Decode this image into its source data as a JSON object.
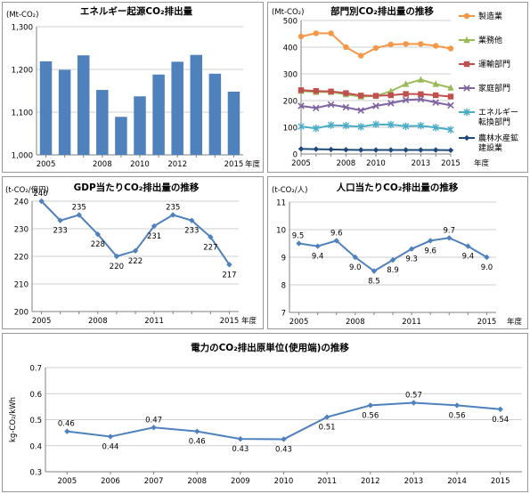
{
  "chart_data": [
    {
      "type": "bar",
      "title": "エネルギー起源CO₂排出量",
      "ylabel": "(Mt-CO₂)",
      "xlabel": "年度",
      "x": [
        2005,
        2006,
        2007,
        2008,
        2009,
        2010,
        2011,
        2012,
        2013,
        2014,
        2015
      ],
      "x_tick_labels": [
        "2005",
        "2008",
        "2010",
        "2012",
        "2015"
      ],
      "values": [
        1219,
        1199,
        1233,
        1152,
        1089,
        1137,
        1188,
        1218,
        1234,
        1190,
        1148
      ],
      "ylim": [
        1000,
        1300
      ],
      "yticks": [
        "1,000",
        "1,100",
        "1,200",
        "1,300"
      ],
      "color": "#4F81BD",
      "grid": true
    },
    {
      "type": "line",
      "title": "部門別CO₂排出量の推移",
      "ylabel": "(Mt-CO₂)",
      "xlabel": "年度",
      "x": [
        2005,
        2006,
        2007,
        2008,
        2009,
        2010,
        2011,
        2012,
        2013,
        2014,
        2015
      ],
      "x_tick_labels": [
        "2005",
        "2008",
        "2010",
        "2013",
        "2015"
      ],
      "ylim": [
        0,
        500
      ],
      "yticks": [
        "0",
        "100",
        "200",
        "300",
        "400",
        "500"
      ],
      "legend": "right",
      "grid": true,
      "series": [
        {
          "name": "製造業",
          "color": "#F79646",
          "marker": "circle",
          "values": [
            440,
            452,
            452,
            400,
            368,
            397,
            410,
            412,
            412,
            405,
            395
          ]
        },
        {
          "name": "業務他",
          "color": "#9BBB59",
          "marker": "triangle",
          "values": [
            236,
            232,
            232,
            223,
            215,
            217,
            235,
            262,
            278,
            262,
            248
          ]
        },
        {
          "name": "運輸部門",
          "color": "#C0504D",
          "marker": "square",
          "values": [
            239,
            236,
            234,
            228,
            219,
            218,
            220,
            225,
            224,
            220,
            215
          ]
        },
        {
          "name": "家庭部門",
          "color": "#8064A2",
          "marker": "x",
          "values": [
            180,
            172,
            185,
            175,
            163,
            180,
            190,
            202,
            205,
            193,
            182
          ]
        },
        {
          "name": "エネルギー転換部門",
          "label_lines": [
            "エネルギー",
            "転換部門"
          ],
          "color": "#4BACC6",
          "marker": "star",
          "values": [
            103,
            96,
            108,
            106,
            102,
            111,
            110,
            104,
            106,
            99,
            91
          ]
        },
        {
          "name": "農林水産鉱建設業",
          "label_lines": [
            "農林水産鉱",
            "建設業"
          ],
          "color": "#1F497D",
          "marker": "diamond",
          "values": [
            19,
            18,
            17,
            16,
            15,
            15,
            15,
            15,
            15,
            15,
            14
          ]
        }
      ]
    },
    {
      "type": "line",
      "title": "GDP当たりCO₂排出量の推移",
      "ylabel": "(t-CO₂/億円)",
      "xlabel": "年度",
      "x": [
        2005,
        2006,
        2007,
        2008,
        2009,
        2010,
        2011,
        2012,
        2013,
        2014,
        2015
      ],
      "x_tick_labels": [
        "2005",
        "2008",
        "2011",
        "2015"
      ],
      "values": [
        240,
        233,
        235,
        228,
        220,
        222,
        231,
        235,
        233,
        227,
        217
      ],
      "data_labels": [
        "240",
        "233",
        "235",
        "228",
        "220",
        "222",
        "231",
        "235",
        "233",
        "227",
        "217"
      ],
      "ylim": [
        200,
        240
      ],
      "yticks": [
        "200",
        "210",
        "220",
        "230",
        "240"
      ],
      "color": "#4F81BD",
      "grid": true
    },
    {
      "type": "line",
      "title": "人口当たりCO₂排出量の推移",
      "ylabel": "(t-CO₂/人)",
      "xlabel": "年度",
      "x": [
        2005,
        2006,
        2007,
        2008,
        2009,
        2010,
        2011,
        2012,
        2013,
        2014,
        2015
      ],
      "x_tick_labels": [
        "2005",
        "2008",
        "2011",
        "2015"
      ],
      "values": [
        9.5,
        9.4,
        9.6,
        9.0,
        8.5,
        8.9,
        9.3,
        9.6,
        9.7,
        9.4,
        9.0
      ],
      "data_labels": [
        "9.5",
        "9.4",
        "9.6",
        "9.0",
        "8.5",
        "8.9",
        "9.3",
        "9.6",
        "9.7",
        "9.4",
        "9.0"
      ],
      "ylim": [
        7,
        11
      ],
      "yticks": [
        "7",
        "8",
        "9",
        "10",
        "11"
      ],
      "color": "#4F81BD",
      "grid": true
    },
    {
      "type": "line",
      "title": "電力のCO₂排出原単位(使用端)の推移",
      "ylabel": "kg-CO₂/kWh",
      "xlabel": "",
      "x": [
        2005,
        2006,
        2007,
        2008,
        2009,
        2010,
        2011,
        2012,
        2013,
        2014,
        2015
      ],
      "x_tick_labels": [
        "2005",
        "2006",
        "2007",
        "2008",
        "2009",
        "2010",
        "2011",
        "2012",
        "2013",
        "2014",
        "2015"
      ],
      "values": [
        0.455,
        0.435,
        0.47,
        0.455,
        0.426,
        0.425,
        0.51,
        0.555,
        0.565,
        0.555,
        0.54
      ],
      "data_labels": [
        "0.46",
        "0.44",
        "0.47",
        "0.46",
        "0.43",
        "0.43",
        "0.51",
        "0.56",
        "0.57",
        "0.56",
        "0.54"
      ],
      "ylim": [
        0.3,
        0.7
      ],
      "yticks": [
        "0.3",
        "0.4",
        "0.5",
        "0.6",
        "0.7"
      ],
      "color": "#4F81BD",
      "grid": true
    }
  ]
}
